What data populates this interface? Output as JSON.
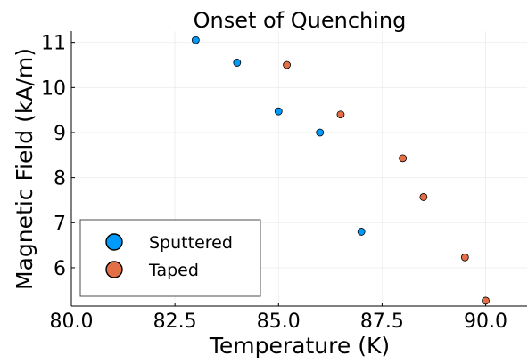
{
  "chart_data": {
    "type": "scatter",
    "title": "Onset of Quenching",
    "xlabel": "Temperature (K)",
    "ylabel": "Magnetic Field (kA/m)",
    "xlim": [
      80.0,
      91.0
    ],
    "ylim": [
      5.15,
      11.25
    ],
    "xticks": [
      80.0,
      82.5,
      85.0,
      87.5,
      90.0
    ],
    "xtick_labels": [
      "80.0",
      "82.5",
      "85.0",
      "87.5",
      "90.0"
    ],
    "yticks": [
      6,
      7,
      8,
      9,
      10,
      11
    ],
    "ytick_labels": [
      "6",
      "7",
      "8",
      "9",
      "10",
      "11"
    ],
    "grid": true,
    "legend_position": "bottom-left",
    "series": [
      {
        "name": "Sputtered",
        "color": "#009AFA",
        "x": [
          83.0,
          84.0,
          85.0,
          86.0,
          87.0
        ],
        "y": [
          11.05,
          10.55,
          9.47,
          9.0,
          6.8
        ]
      },
      {
        "name": "Taped",
        "color": "#E26F46",
        "x": [
          85.2,
          86.5,
          88.0,
          88.5,
          89.5,
          90.0
        ],
        "y": [
          10.5,
          9.4,
          8.43,
          7.57,
          6.23,
          5.27
        ]
      }
    ]
  }
}
